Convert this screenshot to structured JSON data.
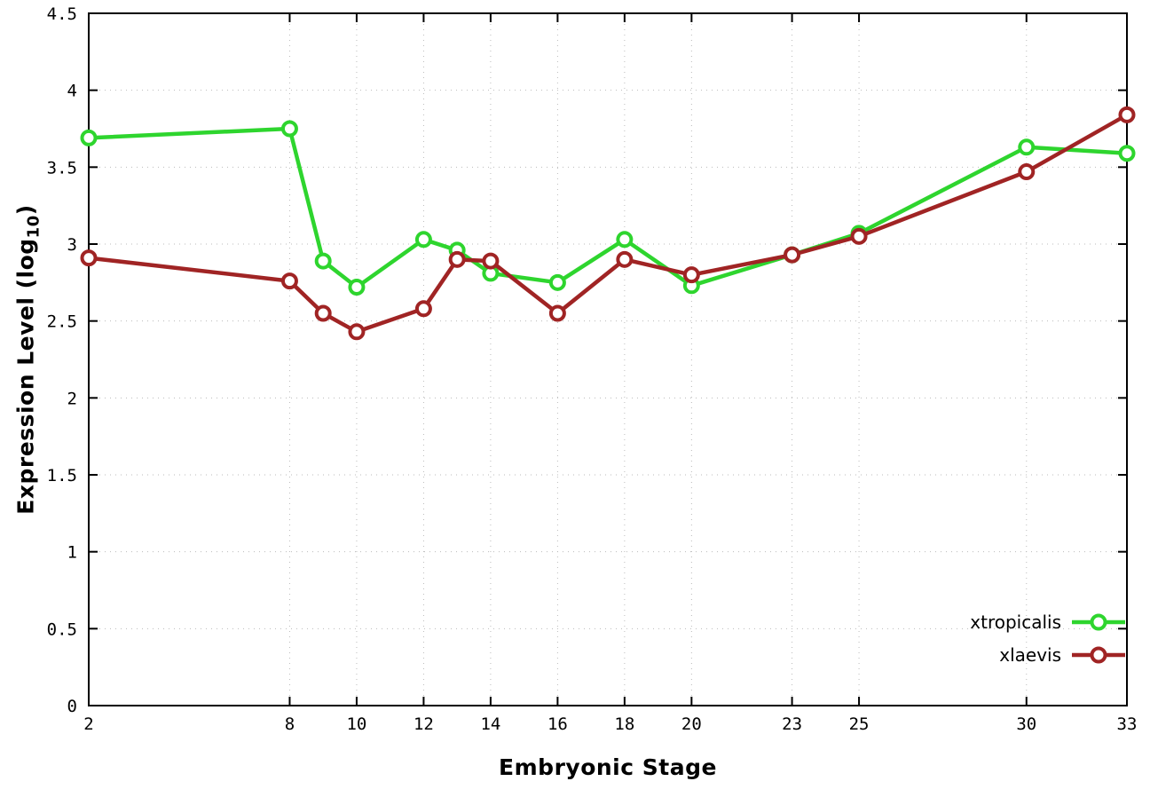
{
  "chart_data": {
    "type": "line",
    "title": "",
    "xlabel": "Embryonic Stage",
    "ylabel": "Expression Level (log10)",
    "ylabel_prefix": "Expression Level (log",
    "ylabel_sub": "10",
    "ylabel_suffix": ")",
    "x": [
      2,
      8,
      9,
      10,
      12,
      13,
      14,
      16,
      18,
      20,
      23,
      25,
      30,
      33
    ],
    "series": [
      {
        "name": "xtropicalis",
        "color": "#2ed52e",
        "values": [
          3.69,
          3.75,
          2.89,
          2.72,
          3.03,
          2.96,
          2.81,
          2.75,
          3.03,
          2.73,
          2.93,
          3.07,
          3.63,
          3.59
        ]
      },
      {
        "name": "xlaevis",
        "color": "#a02424",
        "values": [
          2.91,
          2.76,
          2.55,
          2.43,
          2.58,
          2.9,
          2.89,
          2.55,
          2.9,
          2.8,
          2.93,
          3.05,
          3.47,
          3.84
        ]
      }
    ],
    "xticks": [
      2,
      8,
      10,
      12,
      14,
      16,
      18,
      20,
      23,
      25,
      30,
      33
    ],
    "yticks": [
      0,
      0.5,
      1,
      1.5,
      2,
      2.5,
      3,
      3.5,
      4,
      4.5
    ],
    "ytick_labels": [
      "0",
      "0.5",
      "1",
      "1.5",
      "2",
      "2.5",
      "3",
      "3.5",
      "4",
      "4.5"
    ],
    "xlim": [
      2,
      33
    ],
    "ylim": [
      0,
      4.5
    ],
    "grid": true,
    "legend_position": "bottom-right",
    "legend": [
      "xtropicalis",
      "xlaevis"
    ],
    "colors": {
      "background": "#ffffff",
      "axis": "#000000",
      "grid": "#bbbbbb",
      "marker_fill": "#ffffff"
    },
    "marker": "open-circle"
  }
}
